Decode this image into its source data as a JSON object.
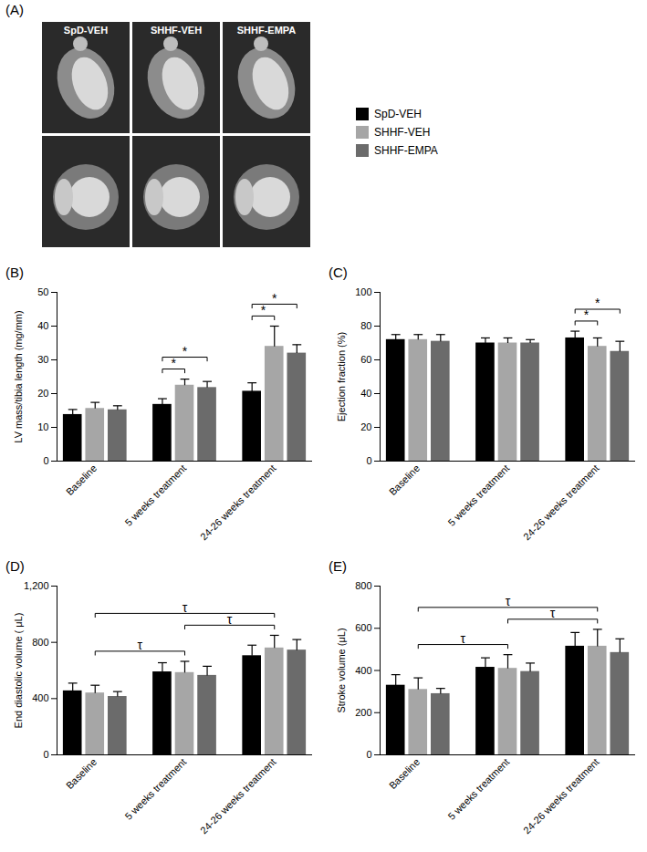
{
  "chart_data": [
    {
      "type": "image_grid",
      "title": "(A)",
      "categories": [
        "SpD-VEH",
        "SHHF-VEH",
        "SHHF-EMPA"
      ],
      "legend": "right"
    },
    {
      "type": "bar",
      "title": "(B)",
      "y_label": "LV mass/tibia length (mg/mm)",
      "categories": [
        "Baseline",
        "5 weeks treatment",
        "24-26 weeks treatment"
      ],
      "series": [
        {
          "name": "SpD-VEH",
          "color": "#000000",
          "values": [
            13.8,
            16.8,
            20.7
          ],
          "errors": [
            1.5,
            1.7,
            2.5
          ]
        },
        {
          "name": "SHHF-VEH",
          "color": "#a6a6a6",
          "values": [
            15.6,
            22.5,
            34
          ],
          "errors": [
            1.8,
            1.8,
            6
          ]
        },
        {
          "name": "SHHF-EMPA",
          "color": "#6b6b6b",
          "values": [
            15.2,
            21.8,
            32
          ],
          "errors": [
            1.2,
            1.8,
            2.5
          ]
        }
      ],
      "ylim": [
        0,
        50
      ],
      "yticks": [
        0,
        10,
        20,
        30,
        40,
        50
      ],
      "annotations": [
        {
          "from": [
            "5 weeks treatment",
            "SpD-VEH"
          ],
          "to": [
            "5 weeks treatment",
            "SHHF-VEH"
          ],
          "text": "*"
        },
        {
          "from": [
            "5 weeks treatment",
            "SpD-VEH"
          ],
          "to": [
            "5 weeks treatment",
            "SHHF-EMPA"
          ],
          "text": "*"
        },
        {
          "from": [
            "24-26 weeks treatment",
            "SpD-VEH"
          ],
          "to": [
            "24-26 weeks treatment",
            "SHHF-VEH"
          ],
          "text": "*"
        },
        {
          "from": [
            "24-26 weeks treatment",
            "SpD-VEH"
          ],
          "to": [
            "24-26 weeks treatment",
            "SHHF-EMPA"
          ],
          "text": "*"
        }
      ]
    },
    {
      "type": "bar",
      "title": "(C)",
      "y_label": "Ejection fraction (%)",
      "categories": [
        "Baseline",
        "5 weeks treatment",
        "24-26 weeks treatment"
      ],
      "series": [
        {
          "name": "SpD-VEH",
          "color": "#000000",
          "values": [
            72,
            70,
            73
          ],
          "errors": [
            3,
            3,
            4
          ]
        },
        {
          "name": "SHHF-VEH",
          "color": "#a6a6a6",
          "values": [
            72,
            70,
            68
          ],
          "errors": [
            3,
            3,
            5
          ]
        },
        {
          "name": "SHHF-EMPA",
          "color": "#6b6b6b",
          "values": [
            71,
            70,
            65
          ],
          "errors": [
            4,
            2,
            6
          ]
        }
      ],
      "ylim": [
        0,
        100
      ],
      "yticks": [
        0,
        20,
        40,
        60,
        80,
        100
      ],
      "annotations": [
        {
          "from": [
            "24-26 weeks treatment",
            "SpD-VEH"
          ],
          "to": [
            "24-26 weeks treatment",
            "SHHF-VEH"
          ],
          "text": "*"
        },
        {
          "from": [
            "24-26 weeks treatment",
            "SpD-VEH"
          ],
          "to": [
            "24-26 weeks treatment",
            "SHHF-EMPA"
          ],
          "text": "*"
        }
      ]
    },
    {
      "type": "bar",
      "title": "(D)",
      "y_label": "End diastolic volume ( μL)",
      "categories": [
        "Baseline",
        "5 weeks treatment",
        "24-26 weeks treatment"
      ],
      "series": [
        {
          "name": "SpD-VEH",
          "color": "#000000",
          "values": [
            455,
            590,
            705
          ],
          "errors": [
            55,
            65,
            75
          ]
        },
        {
          "name": "SHHF-VEH",
          "color": "#a6a6a6",
          "values": [
            440,
            585,
            760
          ],
          "errors": [
            55,
            80,
            90
          ]
        },
        {
          "name": "SHHF-EMPA",
          "color": "#6b6b6b",
          "values": [
            415,
            565,
            745
          ],
          "errors": [
            35,
            65,
            75
          ]
        }
      ],
      "ylim": [
        0,
        1200
      ],
      "yticks": [
        0,
        400,
        800,
        1200
      ],
      "annotations": [
        {
          "from": [
            "Baseline",
            "SHHF-VEH"
          ],
          "to": [
            "5 weeks treatment",
            "SHHF-VEH"
          ],
          "text": "τ"
        },
        {
          "from": [
            "Baseline",
            "SHHF-VEH"
          ],
          "to": [
            "24-26 weeks treatment",
            "SHHF-VEH"
          ],
          "text": "τ"
        },
        {
          "from": [
            "5 weeks treatment",
            "SHHF-VEH"
          ],
          "to": [
            "24-26 weeks treatment",
            "SHHF-VEH"
          ],
          "text": "τ"
        }
      ]
    },
    {
      "type": "bar",
      "title": "(E)",
      "y_label": "Stroke volume (μL)",
      "categories": [
        "Baseline",
        "5 weeks treatment",
        "24-26 weeks treatment"
      ],
      "series": [
        {
          "name": "SpD-VEH",
          "color": "#000000",
          "values": [
            330,
            415,
            515
          ],
          "errors": [
            50,
            45,
            65
          ]
        },
        {
          "name": "SHHF-VEH",
          "color": "#a6a6a6",
          "values": [
            310,
            410,
            515
          ],
          "errors": [
            55,
            65,
            80
          ]
        },
        {
          "name": "SHHF-EMPA",
          "color": "#6b6b6b",
          "values": [
            290,
            395,
            485
          ],
          "errors": [
            25,
            40,
            65
          ]
        }
      ],
      "ylim": [
        0,
        800
      ],
      "yticks": [
        0,
        200,
        400,
        600,
        800
      ],
      "annotations": [
        {
          "from": [
            "Baseline",
            "SHHF-VEH"
          ],
          "to": [
            "5 weeks treatment",
            "SHHF-VEH"
          ],
          "text": "τ"
        },
        {
          "from": [
            "Baseline",
            "SHHF-VEH"
          ],
          "to": [
            "24-26 weeks treatment",
            "SHHF-VEH"
          ],
          "text": "τ"
        },
        {
          "from": [
            "5 weeks treatment",
            "SHHF-VEH"
          ],
          "to": [
            "24-26 weeks treatment",
            "SHHF-VEH"
          ],
          "text": "τ"
        }
      ]
    }
  ]
}
